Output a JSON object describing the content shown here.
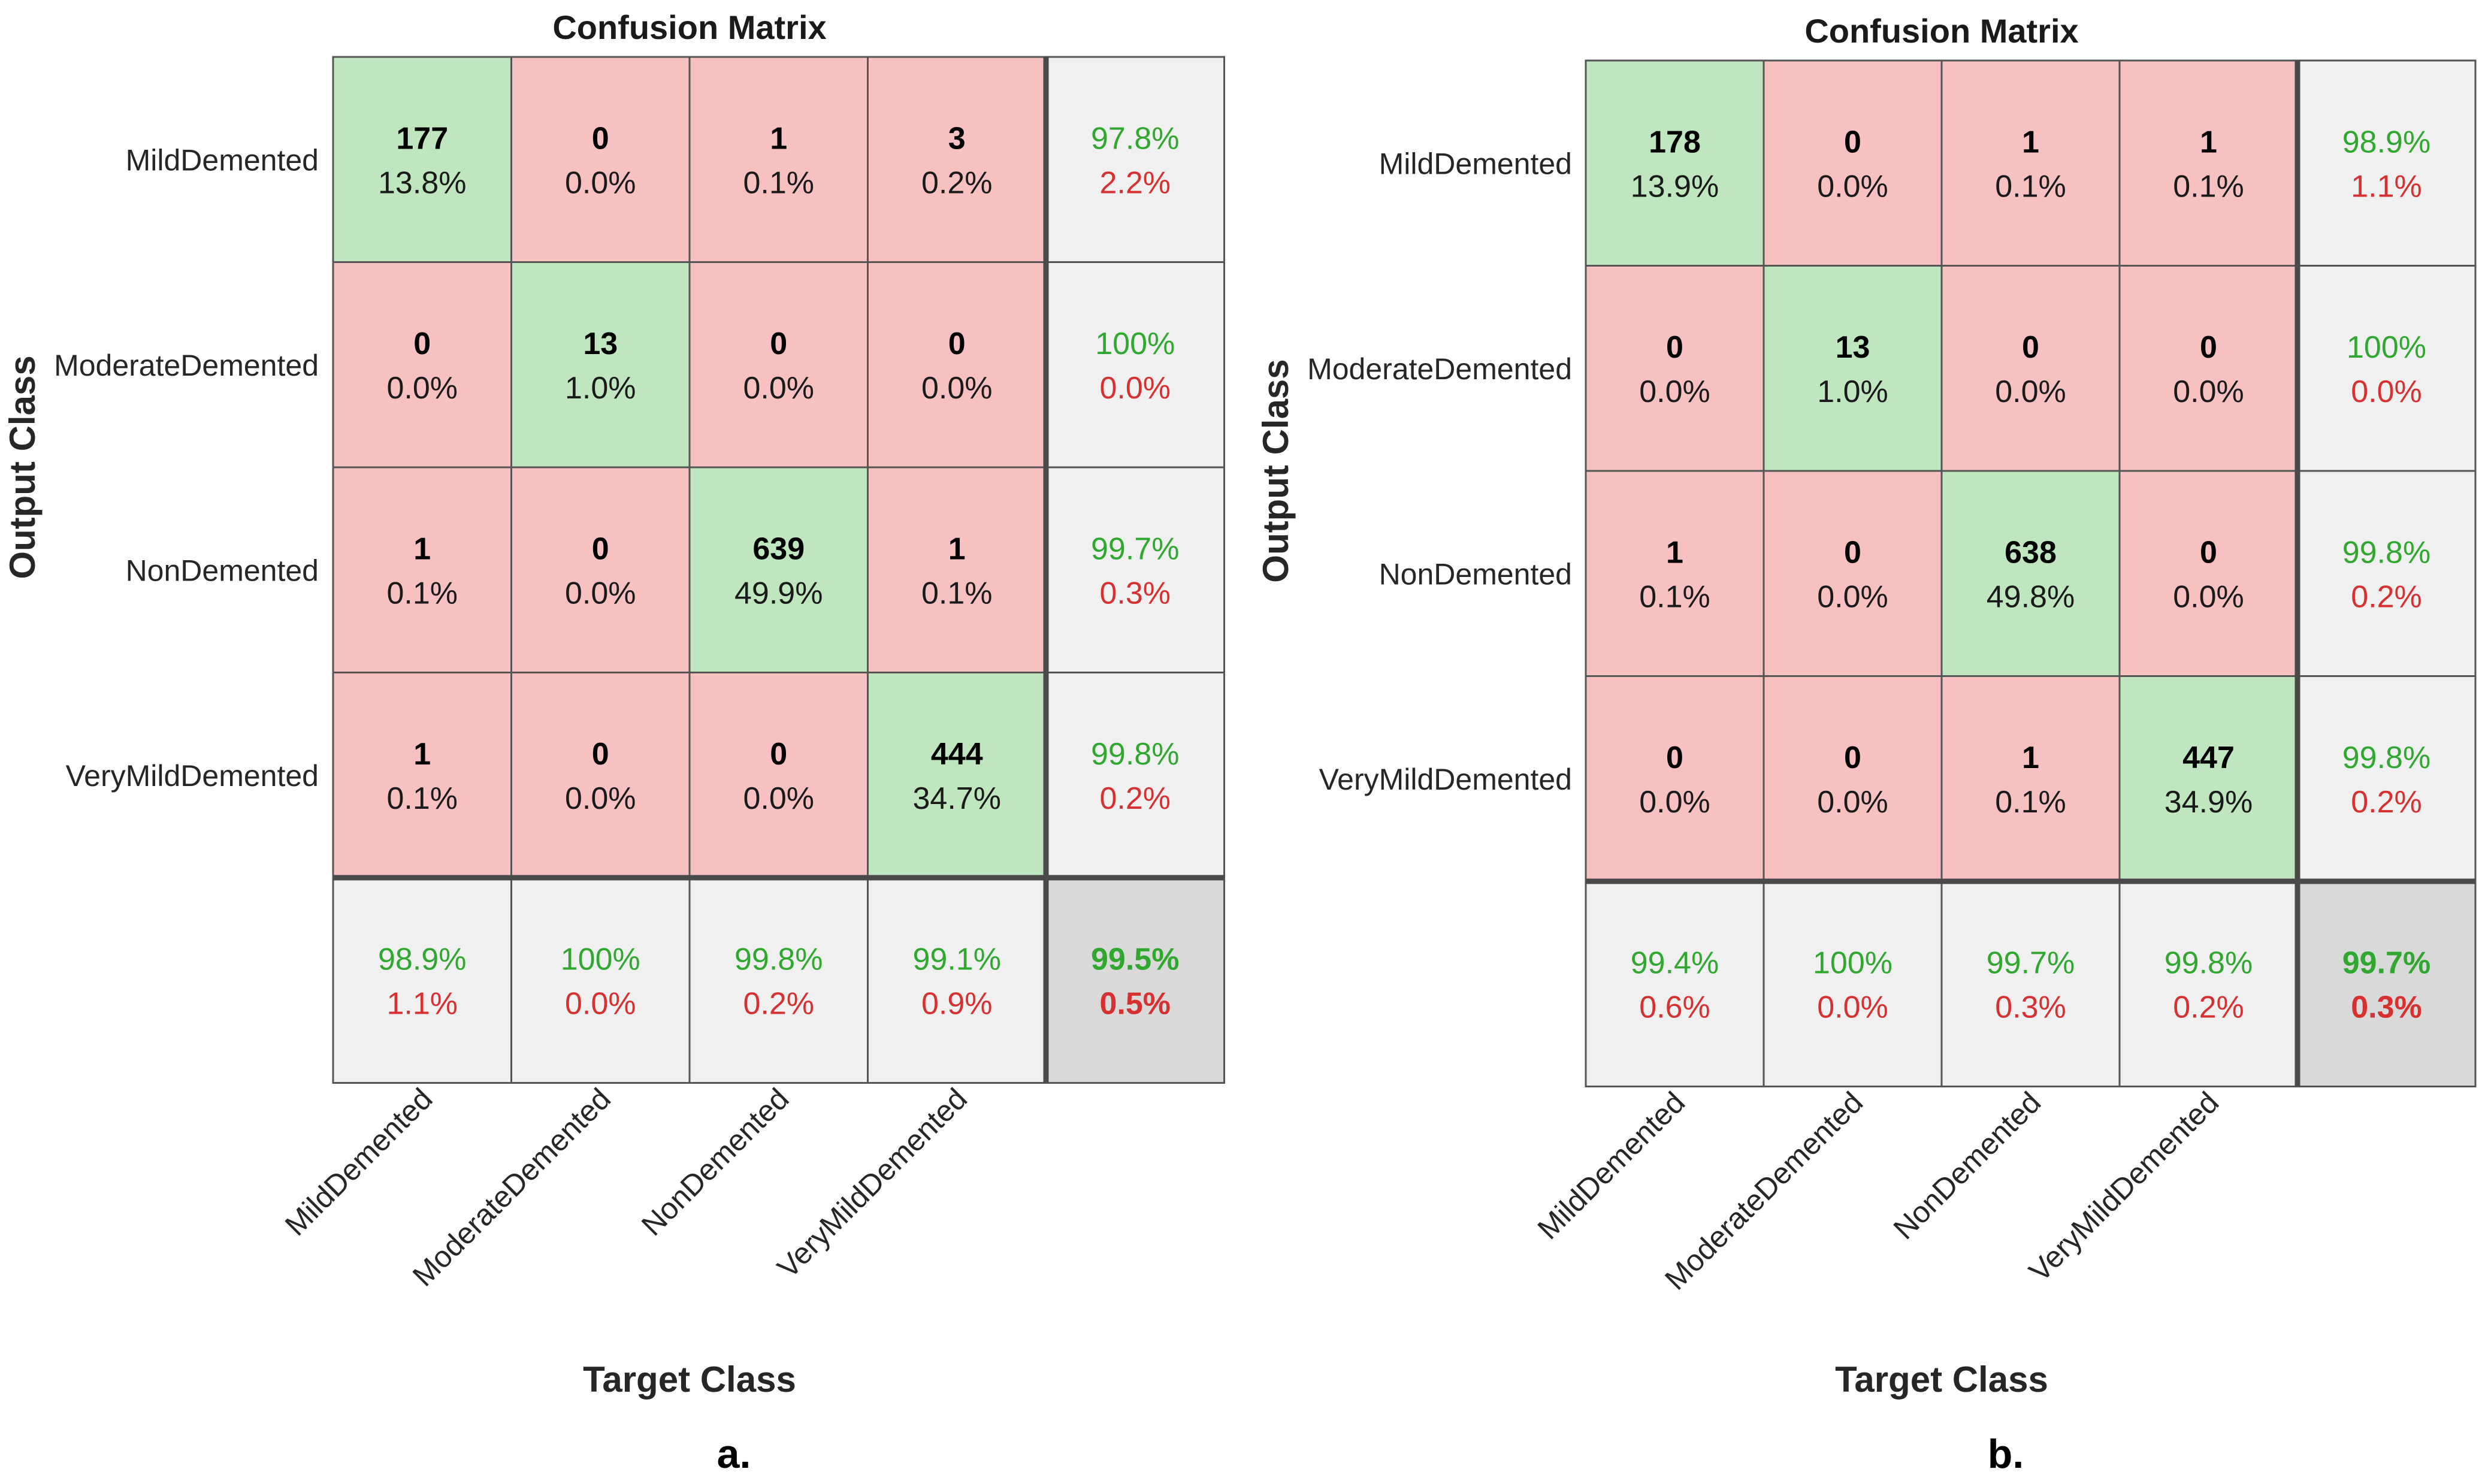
{
  "chart_data": [
    {
      "type": "heatmap",
      "subtype": "confusion-matrix",
      "title": "Confusion Matrix",
      "xlabel": "Target Class",
      "ylabel": "Output Class",
      "caption": "a.",
      "classes": [
        "MildDemented",
        "ModerateDemented",
        "NonDemented",
        "VeryMildDemented"
      ],
      "counts": [
        [
          177,
          0,
          1,
          3
        ],
        [
          0,
          13,
          0,
          0
        ],
        [
          1,
          0,
          639,
          1
        ],
        [
          1,
          0,
          0,
          444
        ]
      ],
      "percents": [
        [
          "13.8%",
          "0.0%",
          "0.1%",
          "0.2%"
        ],
        [
          "0.0%",
          "1.0%",
          "0.0%",
          "0.0%"
        ],
        [
          "0.1%",
          "0.0%",
          "49.9%",
          "0.1%"
        ],
        [
          "0.1%",
          "0.0%",
          "0.0%",
          "34.7%"
        ]
      ],
      "row_summary": [
        [
          "97.8%",
          "2.2%"
        ],
        [
          "100%",
          "0.0%"
        ],
        [
          "99.7%",
          "0.3%"
        ],
        [
          "99.8%",
          "0.2%"
        ]
      ],
      "col_summary": [
        [
          "98.9%",
          "1.1%"
        ],
        [
          "100%",
          "0.0%"
        ],
        [
          "99.8%",
          "0.2%"
        ],
        [
          "99.1%",
          "0.9%"
        ]
      ],
      "overall": [
        "99.5%",
        "0.5%"
      ]
    },
    {
      "type": "heatmap",
      "subtype": "confusion-matrix",
      "title": "Confusion Matrix",
      "xlabel": "Target Class",
      "ylabel": "Output Class",
      "caption": "b.",
      "classes": [
        "MildDemented",
        "ModerateDemented",
        "NonDemented",
        "VeryMildDemented"
      ],
      "counts": [
        [
          178,
          0,
          1,
          1
        ],
        [
          0,
          13,
          0,
          0
        ],
        [
          1,
          0,
          638,
          0
        ],
        [
          0,
          0,
          1,
          447
        ]
      ],
      "percents": [
        [
          "13.9%",
          "0.0%",
          "0.1%",
          "0.1%"
        ],
        [
          "0.0%",
          "1.0%",
          "0.0%",
          "0.0%"
        ],
        [
          "0.1%",
          "0.0%",
          "49.8%",
          "0.0%"
        ],
        [
          "0.0%",
          "0.0%",
          "0.1%",
          "34.9%"
        ]
      ],
      "row_summary": [
        [
          "98.9%",
          "1.1%"
        ],
        [
          "100%",
          "0.0%"
        ],
        [
          "99.8%",
          "0.2%"
        ],
        [
          "99.8%",
          "0.2%"
        ]
      ],
      "col_summary": [
        [
          "99.4%",
          "0.6%"
        ],
        [
          "100%",
          "0.0%"
        ],
        [
          "99.7%",
          "0.3%"
        ],
        [
          "99.8%",
          "0.2%"
        ]
      ],
      "overall": [
        "99.7%",
        "0.3%"
      ]
    }
  ],
  "colors": {
    "diag": "#bfe6bf",
    "offdiag": "#f7c1c1",
    "summary": "#f0f0f0",
    "overall": "#d9d9d9",
    "grid": "#555555",
    "green_text": "#30a830",
    "red_text": "#d63030"
  }
}
